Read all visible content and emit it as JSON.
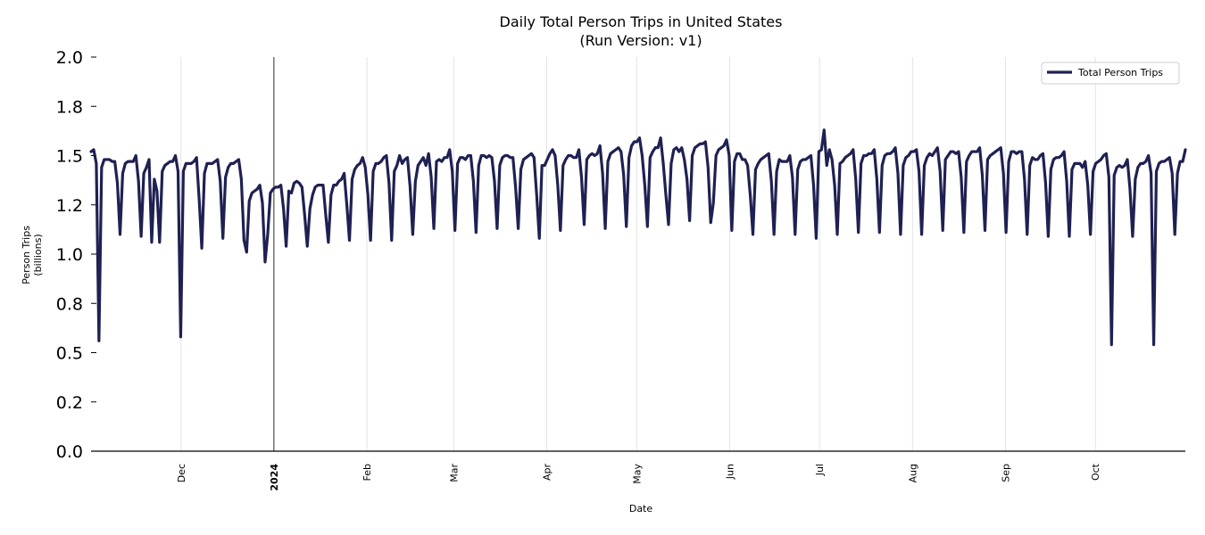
{
  "chart_data": {
    "type": "line",
    "title": "Daily Total Person Trips in United States",
    "subtitle": "(Run Version: v1)",
    "xlabel": "Date",
    "ylabel_line1": "Person Trips",
    "ylabel_line2": "(billions)",
    "ylim": [
      0,
      2.0
    ],
    "y_ticks": [
      0.0,
      0.25,
      0.5,
      0.75,
      1.0,
      1.25,
      1.5,
      1.75,
      2.0
    ],
    "y_tick_labels": [
      "0.0",
      "0.2",
      "0.5",
      "0.8",
      "1.0",
      "1.2",
      "1.5",
      "1.8",
      "2.0"
    ],
    "x_start_date": "2023-11-01",
    "x_end_date": "2024-10-31",
    "x_ticks": [
      {
        "date": "2023-12-01",
        "label": "Dec",
        "bold": false
      },
      {
        "date": "2024-01-01",
        "label": "2024",
        "bold": true
      },
      {
        "date": "2024-02-01",
        "label": "Feb",
        "bold": false
      },
      {
        "date": "2024-03-01",
        "label": "Mar",
        "bold": false
      },
      {
        "date": "2024-04-01",
        "label": "Apr",
        "bold": false
      },
      {
        "date": "2024-05-01",
        "label": "May",
        "bold": false
      },
      {
        "date": "2024-06-01",
        "label": "Jun",
        "bold": false
      },
      {
        "date": "2024-07-01",
        "label": "Jul",
        "bold": false
      },
      {
        "date": "2024-08-01",
        "label": "Aug",
        "bold": false
      },
      {
        "date": "2024-09-01",
        "label": "Sep",
        "bold": false
      },
      {
        "date": "2024-10-01",
        "label": "Oct",
        "bold": false
      }
    ],
    "year_marker_date": "2024-01-01",
    "grid": "vertical",
    "legend_position": "top-right",
    "series": [
      {
        "name": "Total Person Trips",
        "color": "#1f2152",
        "values": [
          1.52,
          1.53,
          1.46,
          0.56,
          1.44,
          1.48,
          1.48,
          1.48,
          1.47,
          1.47,
          1.36,
          1.1,
          1.41,
          1.46,
          1.47,
          1.47,
          1.47,
          1.5,
          1.37,
          1.09,
          1.41,
          1.44,
          1.48,
          1.06,
          1.38,
          1.32,
          1.06,
          1.42,
          1.45,
          1.46,
          1.47,
          1.47,
          1.5,
          1.42,
          0.58,
          1.42,
          1.46,
          1.46,
          1.46,
          1.47,
          1.49,
          1.28,
          1.03,
          1.41,
          1.46,
          1.46,
          1.46,
          1.47,
          1.48,
          1.37,
          1.08,
          1.39,
          1.44,
          1.46,
          1.46,
          1.47,
          1.48,
          1.38,
          1.07,
          1.01,
          1.27,
          1.31,
          1.32,
          1.33,
          1.35,
          1.26,
          0.96,
          1.1,
          1.31,
          1.33,
          1.34,
          1.34,
          1.35,
          1.23,
          1.04,
          1.32,
          1.31,
          1.36,
          1.37,
          1.36,
          1.34,
          1.2,
          1.04,
          1.23,
          1.3,
          1.34,
          1.35,
          1.35,
          1.35,
          1.2,
          1.06,
          1.3,
          1.35,
          1.35,
          1.37,
          1.38,
          1.41,
          1.25,
          1.07,
          1.38,
          1.43,
          1.45,
          1.46,
          1.49,
          1.44,
          1.3,
          1.07,
          1.42,
          1.46,
          1.46,
          1.47,
          1.49,
          1.5,
          1.36,
          1.07,
          1.42,
          1.45,
          1.5,
          1.46,
          1.48,
          1.49,
          1.34,
          1.1,
          1.37,
          1.45,
          1.47,
          1.49,
          1.45,
          1.51,
          1.39,
          1.13,
          1.47,
          1.48,
          1.47,
          1.49,
          1.49,
          1.53,
          1.42,
          1.12,
          1.46,
          1.49,
          1.49,
          1.48,
          1.5,
          1.5,
          1.37,
          1.11,
          1.45,
          1.5,
          1.5,
          1.49,
          1.5,
          1.49,
          1.37,
          1.13,
          1.45,
          1.49,
          1.5,
          1.5,
          1.49,
          1.49,
          1.34,
          1.13,
          1.43,
          1.48,
          1.49,
          1.5,
          1.51,
          1.49,
          1.3,
          1.08,
          1.45,
          1.45,
          1.48,
          1.51,
          1.53,
          1.5,
          1.35,
          1.12,
          1.45,
          1.48,
          1.5,
          1.5,
          1.49,
          1.49,
          1.53,
          1.39,
          1.15,
          1.48,
          1.5,
          1.51,
          1.5,
          1.51,
          1.55,
          1.41,
          1.13,
          1.47,
          1.51,
          1.52,
          1.53,
          1.54,
          1.52,
          1.4,
          1.14,
          1.49,
          1.55,
          1.57,
          1.57,
          1.59,
          1.5,
          1.35,
          1.14,
          1.49,
          1.52,
          1.54,
          1.54,
          1.59,
          1.46,
          1.3,
          1.15,
          1.46,
          1.53,
          1.54,
          1.52,
          1.54,
          1.48,
          1.38,
          1.17,
          1.5,
          1.54,
          1.55,
          1.56,
          1.56,
          1.57,
          1.44,
          1.16,
          1.26,
          1.5,
          1.53,
          1.54,
          1.55,
          1.58,
          1.5,
          1.12,
          1.47,
          1.51,
          1.51,
          1.48,
          1.48,
          1.45,
          1.3,
          1.1,
          1.43,
          1.46,
          1.48,
          1.49,
          1.5,
          1.51,
          1.37,
          1.1,
          1.42,
          1.48,
          1.47,
          1.47,
          1.47,
          1.5,
          1.39,
          1.1,
          1.43,
          1.47,
          1.48,
          1.48,
          1.49,
          1.5,
          1.35,
          1.08,
          1.52,
          1.53,
          1.63,
          1.45,
          1.53,
          1.48,
          1.35,
          1.1,
          1.46,
          1.47,
          1.49,
          1.5,
          1.51,
          1.53,
          1.38,
          1.11,
          1.46,
          1.5,
          1.5,
          1.51,
          1.51,
          1.53,
          1.38,
          1.11,
          1.45,
          1.5,
          1.51,
          1.51,
          1.52,
          1.54,
          1.41,
          1.1,
          1.45,
          1.49,
          1.5,
          1.52,
          1.52,
          1.53,
          1.42,
          1.1,
          1.45,
          1.49,
          1.51,
          1.5,
          1.52,
          1.54,
          1.42,
          1.12,
          1.48,
          1.5,
          1.52,
          1.52,
          1.51,
          1.52,
          1.39,
          1.11,
          1.47,
          1.5,
          1.52,
          1.52,
          1.52,
          1.54,
          1.4,
          1.12,
          1.48,
          1.5,
          1.51,
          1.52,
          1.53,
          1.54,
          1.41,
          1.11,
          1.47,
          1.52,
          1.52,
          1.51,
          1.52,
          1.52,
          1.38,
          1.1,
          1.45,
          1.49,
          1.48,
          1.48,
          1.5,
          1.51,
          1.36,
          1.09,
          1.43,
          1.48,
          1.49,
          1.49,
          1.5,
          1.52,
          1.37,
          1.09,
          1.43,
          1.46,
          1.46,
          1.46,
          1.44,
          1.47,
          1.35,
          1.1,
          1.42,
          1.46,
          1.47,
          1.48,
          1.5,
          1.51,
          1.39,
          0.54,
          1.4,
          1.44,
          1.45,
          1.44,
          1.45,
          1.48,
          1.33,
          1.09,
          1.38,
          1.44,
          1.46,
          1.46,
          1.47,
          1.5,
          1.41,
          0.54,
          1.42,
          1.46,
          1.47,
          1.47,
          1.48,
          1.49,
          1.41,
          1.1,
          1.41,
          1.47,
          1.47,
          1.53
        ]
      }
    ]
  }
}
